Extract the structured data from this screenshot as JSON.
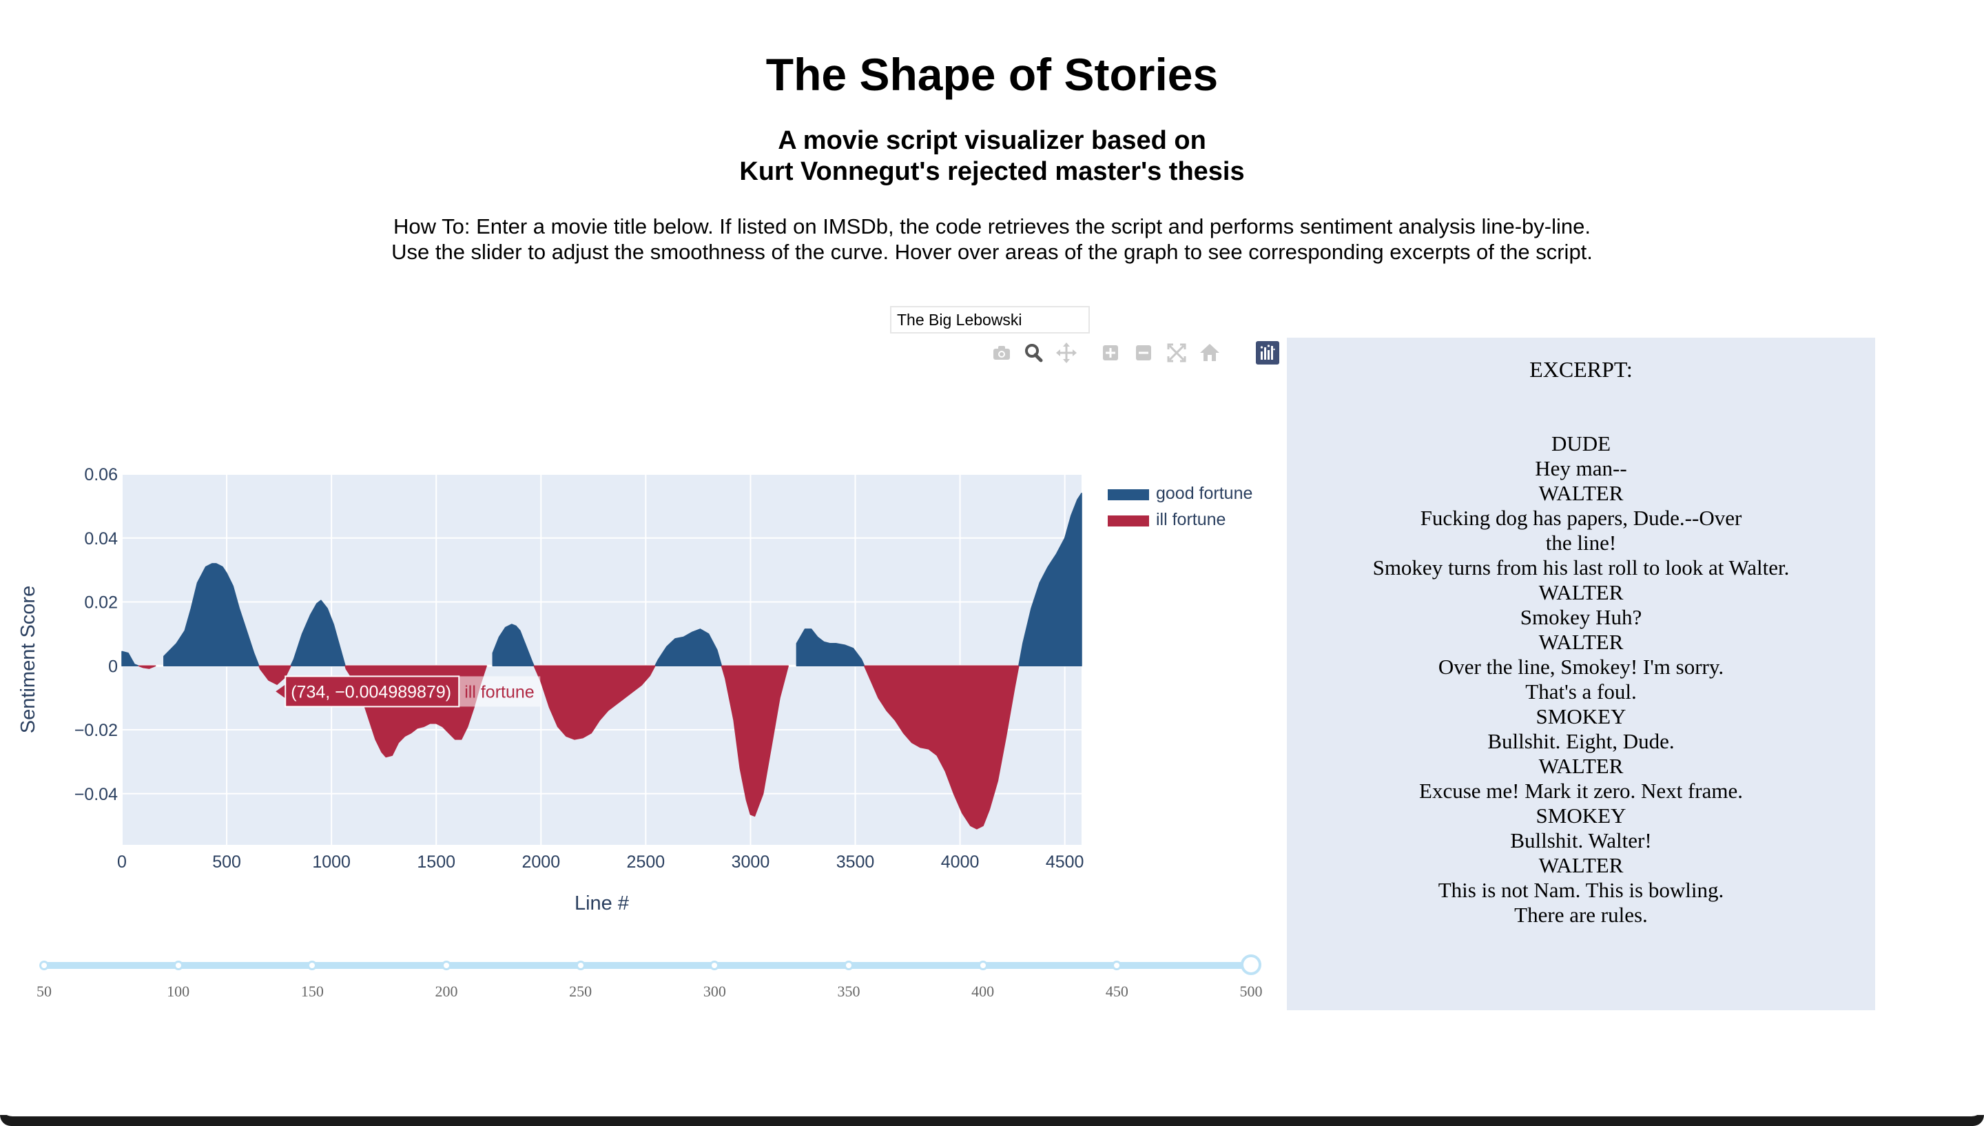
{
  "page": {
    "title": "The Shape of Stories",
    "subtitle_line1": "A movie script visualizer based on",
    "subtitle_line2": "Kurt Vonnegut's rejected master's thesis",
    "instructions_line1": "How To: Enter a movie title below. If listed on IMSDb, the code retrieves the script and performs sentiment analysis line-by-line.",
    "instructions_line2": "Use the slider to adjust the smoothness of the curve. Hover over areas of the graph to see corresponding excerpts of the script."
  },
  "search": {
    "value": "The Big Lebowski"
  },
  "modebar": {
    "icons": [
      "camera-icon",
      "zoom-icon",
      "pan-icon",
      "zoom-in-icon",
      "zoom-out-icon",
      "autoscale-icon",
      "home-icon",
      "plotly-logo-icon"
    ],
    "active": "zoom-icon"
  },
  "colors": {
    "good": "#265686",
    "ill": "#b02843",
    "plot_bg": "#e5ecf6",
    "axis_text": "#2a3f5f",
    "slider": "#bde2f6"
  },
  "chart_data": {
    "type": "area",
    "xlabel": "Line #",
    "ylabel": "Sentiment Score",
    "xlim": [
      0,
      4580
    ],
    "ylim": [
      -0.056,
      0.06
    ],
    "x_ticks": [
      0,
      500,
      1000,
      1500,
      2000,
      2500,
      3000,
      3500,
      4000,
      4500
    ],
    "x_tick_labels": [
      "0",
      "500",
      "1000",
      "1500",
      "2000",
      "2500",
      "3000",
      "3500",
      "4000",
      "4500"
    ],
    "y_ticks": [
      -0.04,
      -0.02,
      0,
      0.02,
      0.04,
      0.06
    ],
    "y_tick_labels": [
      "−0.04",
      "−0.02",
      "0",
      "0.02",
      "0.04",
      "0.06"
    ],
    "grid": true,
    "legend_position": "top-right",
    "series": [
      {
        "name": "good fortune",
        "color": "#265686"
      },
      {
        "name": "ill fortune",
        "color": "#b02843"
      }
    ],
    "x": [
      0,
      30,
      60,
      100,
      130,
      160,
      200,
      260,
      300,
      330,
      360,
      400,
      430,
      450,
      480,
      500,
      530,
      560,
      600,
      630,
      660,
      700,
      740,
      780,
      820,
      860,
      900,
      930,
      950,
      980,
      1010,
      1040,
      1070,
      1110,
      1150,
      1180,
      1210,
      1240,
      1260,
      1290,
      1320,
      1350,
      1380,
      1410,
      1440,
      1470,
      1500,
      1530,
      1560,
      1590,
      1620,
      1650,
      1680,
      1710,
      1740,
      1770,
      1800,
      1830,
      1860,
      1880,
      1900,
      1930,
      1960,
      2000,
      2040,
      2080,
      2120,
      2160,
      2200,
      2240,
      2280,
      2320,
      2360,
      2400,
      2440,
      2480,
      2520,
      2560,
      2600,
      2640,
      2680,
      2720,
      2760,
      2800,
      2840,
      2880,
      2920,
      2950,
      2980,
      3000,
      3020,
      3060,
      3100,
      3140,
      3180,
      3220,
      3260,
      3290,
      3320,
      3350,
      3380,
      3410,
      3450,
      3490,
      3530,
      3570,
      3610,
      3650,
      3690,
      3730,
      3770,
      3810,
      3850,
      3890,
      3930,
      3970,
      4010,
      4050,
      4080,
      4110,
      4140,
      4180,
      4220,
      4260,
      4300,
      4340,
      4380,
      4420,
      4460,
      4500,
      4530,
      4560,
      4580
    ],
    "y": [
      0.0045,
      0.004,
      0.0005,
      -0.0005,
      -0.0008,
      0.0,
      0.003,
      0.007,
      0.011,
      0.018,
      0.026,
      0.031,
      0.032,
      0.032,
      0.031,
      0.029,
      0.025,
      0.018,
      0.01,
      0.004,
      -0.001,
      -0.0045,
      -0.0058,
      -0.0035,
      0.002,
      0.01,
      0.016,
      0.0195,
      0.0205,
      0.018,
      0.013,
      0.006,
      -0.001,
      -0.005,
      -0.011,
      -0.017,
      -0.023,
      -0.027,
      -0.0285,
      -0.028,
      -0.024,
      -0.022,
      -0.021,
      -0.0195,
      -0.019,
      -0.018,
      -0.018,
      -0.019,
      -0.021,
      -0.023,
      -0.023,
      -0.019,
      -0.013,
      -0.006,
      0.0,
      0.004,
      0.009,
      0.012,
      0.013,
      0.0125,
      0.011,
      0.006,
      0.001,
      -0.005,
      -0.013,
      -0.019,
      -0.022,
      -0.023,
      -0.0225,
      -0.021,
      -0.017,
      -0.014,
      -0.012,
      -0.01,
      -0.008,
      -0.006,
      -0.003,
      0.002,
      0.006,
      0.0085,
      0.009,
      0.0105,
      0.0115,
      0.01,
      0.005,
      -0.004,
      -0.017,
      -0.032,
      -0.042,
      -0.0465,
      -0.047,
      -0.04,
      -0.025,
      -0.01,
      0.0,
      0.007,
      0.0115,
      0.0115,
      0.009,
      0.0075,
      0.007,
      0.007,
      0.0065,
      0.0055,
      0.002,
      -0.004,
      -0.01,
      -0.014,
      -0.017,
      -0.021,
      -0.024,
      -0.0255,
      -0.026,
      -0.028,
      -0.033,
      -0.04,
      -0.046,
      -0.05,
      -0.051,
      -0.05,
      -0.045,
      -0.036,
      -0.022,
      -0.007,
      0.007,
      0.018,
      0.026,
      0.031,
      0.035,
      0.04,
      0.047,
      0.052,
      0.054
    ],
    "hover_label": {
      "text": "(734, −0.004989879)",
      "series": "ill fortune",
      "x": 734,
      "y": -0.004989879
    }
  },
  "slider": {
    "marks": [
      "50",
      "100",
      "150",
      "200",
      "250",
      "300",
      "350",
      "400",
      "450",
      "500"
    ],
    "value": 500,
    "min": 50,
    "max": 500
  },
  "excerpt": {
    "heading": "EXCERPT:",
    "lines": [
      "DUDE",
      "Hey man--",
      "WALTER",
      "Fucking dog has papers, Dude.--Over",
      "the line!",
      "Smokey turns from his last roll to look at Walter.",
      "WALTER",
      "Smokey Huh?",
      "WALTER",
      "Over the line, Smokey! I'm sorry.",
      "That's a foul.",
      "SMOKEY",
      "Bullshit. Eight, Dude.",
      "WALTER",
      "Excuse me! Mark it zero. Next frame.",
      "SMOKEY",
      "Bullshit. Walter!",
      "WALTER",
      "This is not Nam. This is bowling.",
      "There are rules."
    ]
  }
}
